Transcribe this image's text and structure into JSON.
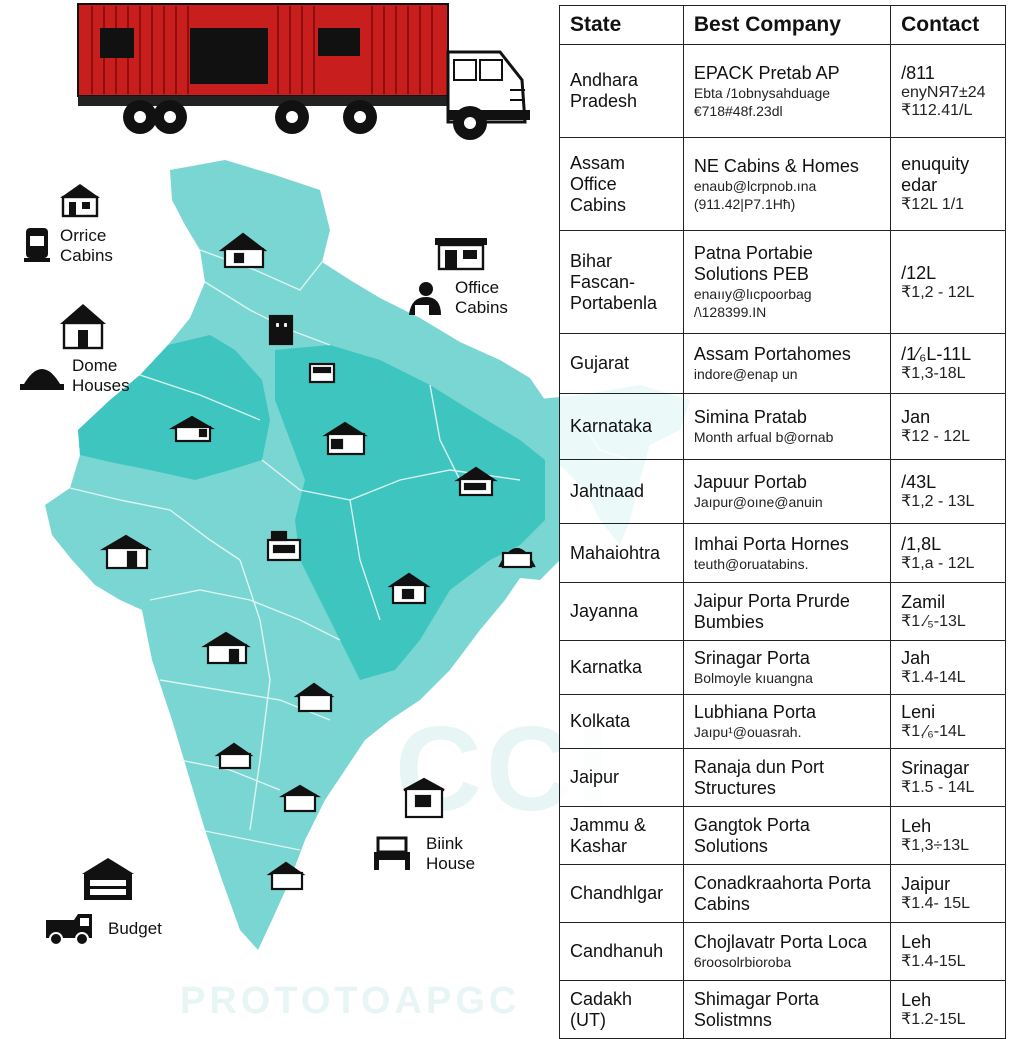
{
  "colors": {
    "map_light": "#7ad6d2",
    "map_dark": "#3ec5c0",
    "truck_red": "#c81e1e",
    "ink": "#111111"
  },
  "legend": [
    {
      "label": "Orrice\nCabins",
      "icon": "office-cabin-icon"
    },
    {
      "label": "Dome\nHouses",
      "icon": "dome-house-icon"
    },
    {
      "label": "Office\nCabins",
      "icon": "office-worker-icon"
    },
    {
      "label": "Biink\nHouse",
      "icon": "bunk-house-icon"
    },
    {
      "label": "Budget",
      "icon": "budget-van-icon"
    }
  ],
  "table": {
    "headers": [
      "State",
      "Best Company",
      "Contact"
    ],
    "rows": [
      {
        "state": "Andhara Pradesh",
        "company": "EPACK Pretab AP",
        "company_sub": "Ebta /1obnysahduage\n€718#48f.23dl",
        "contact": "/811",
        "contact_sub": "enyNЯ7±24\n₹112.41/L"
      },
      {
        "state": "Assam Office Cabins",
        "company": "NE Cabins & Homes",
        "company_sub": "enaub@lcrpnob.ına\n(911.42|P7.1Hħ)",
        "contact": "enuquity edar",
        "contact_sub": "₹12L 1/1"
      },
      {
        "state": "Bihar Fascan-Portabenla",
        "company": "Patna Portabie Solutions  PEB",
        "company_sub": "enaııy@lıcpoorbag\n/\\128399.IN",
        "contact": "/12L",
        "contact_sub": "₹1,2 - 12L"
      },
      {
        "state": "Gujarat",
        "company": "Assam Portahomes",
        "company_sub": "indore@enap un",
        "contact": "/1⁄₆L-11L",
        "contact_sub": "₹1,3-18L"
      },
      {
        "state": "Karnataka",
        "company": "Simina Pratab",
        "company_sub": "Month arfual b@ornab",
        "contact": "Jan",
        "contact_sub": "₹12 - 12L"
      },
      {
        "state": "Jahtnaad",
        "company": "Japuur Portab",
        "company_sub": "Jaıpur@oıne@anuin",
        "contact": "/43L",
        "contact_sub": "₹1,2 - 13L"
      },
      {
        "state": "Mahaiohtra",
        "company": "Imhai Porta Hornes",
        "company_sub": "teuth@oruatabins.",
        "contact": "/1,8L",
        "contact_sub": "₹1,a - 12L"
      },
      {
        "state": "Jayanna",
        "company": "Jaipur Porta Prurde Bumbies",
        "company_sub": "",
        "contact": "Zamil",
        "contact_sub": "₹1.⁄₅-13L"
      },
      {
        "state": "Karnatka",
        "company": "Srinagar Porta",
        "company_sub": "Bolmoyle kıuangna",
        "contact": "Jah",
        "contact_sub": "₹1.4-14L"
      },
      {
        "state": "Kolkata",
        "company": "Lubhiana Porta",
        "company_sub": "Jaıpu¹@ouasrah.",
        "contact": "Leni",
        "contact_sub": "₹1,⁄₆-14L"
      },
      {
        "state": "Jaipur",
        "company": "Ranaja dun Port Structures",
        "company_sub": "",
        "contact": "Srinagar",
        "contact_sub": "₹1.5 - 14L"
      },
      {
        "state": "Jammu & Kashar",
        "company": "Gangtok Porta Solutions",
        "company_sub": "",
        "contact": "Leh",
        "contact_sub": "₹1,3÷13L"
      },
      {
        "state": "Chandhlgar",
        "company": "Conadkraahorta Porta Cabins",
        "company_sub": "",
        "contact": "Jaipur",
        "contact_sub": "₹1.4- 15L"
      },
      {
        "state": "Candhanuh",
        "company": "Chojlavatr Porta Loca",
        "company_sub": "6roosolrbioroba",
        "contact": "Leh",
        "contact_sub": "₹1.4-15L"
      },
      {
        "state": "Cadakh (UT)",
        "company": "Shimagar Porta Solistmns",
        "company_sub": "",
        "contact": "Leh",
        "contact_sub": "₹1.2-15L"
      }
    ]
  }
}
